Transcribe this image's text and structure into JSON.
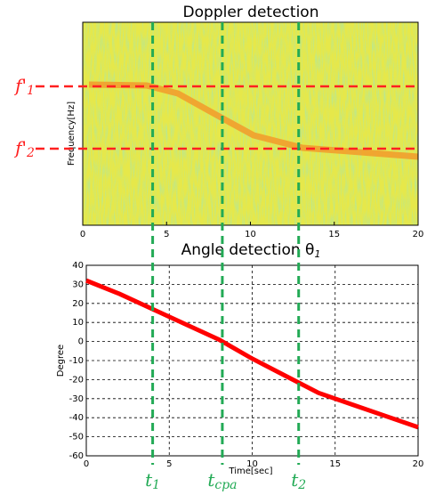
{
  "chart_data": [
    {
      "type": "heatmap",
      "title": "Doppler detection",
      "y_label": "Frequency[Hz]",
      "xlim": [
        0,
        20
      ],
      "xticks": [
        0,
        5,
        10,
        15,
        20
      ],
      "freq_markers": [
        {
          "label": "f'",
          "sub": "1"
        },
        {
          "label": "f'",
          "sub": "2"
        }
      ],
      "marker_color": "#ff2020"
    },
    {
      "type": "line",
      "title": "Angle detection θ",
      "title_sub": "1",
      "x_label": "Time[sec]",
      "y_label": "Degree",
      "x": [
        0,
        2,
        4,
        6,
        8,
        10,
        12,
        14,
        16,
        18,
        20
      ],
      "values": [
        32,
        25,
        17,
        9,
        1,
        -9,
        -18,
        -27,
        -33,
        -39,
        -45
      ],
      "color": "#ff0000",
      "xlim": [
        0,
        20
      ],
      "xticks": [
        0,
        5,
        10,
        15,
        20
      ],
      "ylim": [
        -60,
        40
      ],
      "yticks": [
        40,
        30,
        20,
        10,
        0,
        -10,
        -20,
        -30,
        -40,
        -50,
        -60
      ],
      "grid": true
    }
  ],
  "time_markers": [
    {
      "x": 4,
      "label": "t",
      "sub": "1"
    },
    {
      "x": 8.2,
      "label": "t",
      "sub": "cpa"
    },
    {
      "x": 12.8,
      "label": "t",
      "sub": "2"
    }
  ],
  "time_marker_color": "#22aa55"
}
